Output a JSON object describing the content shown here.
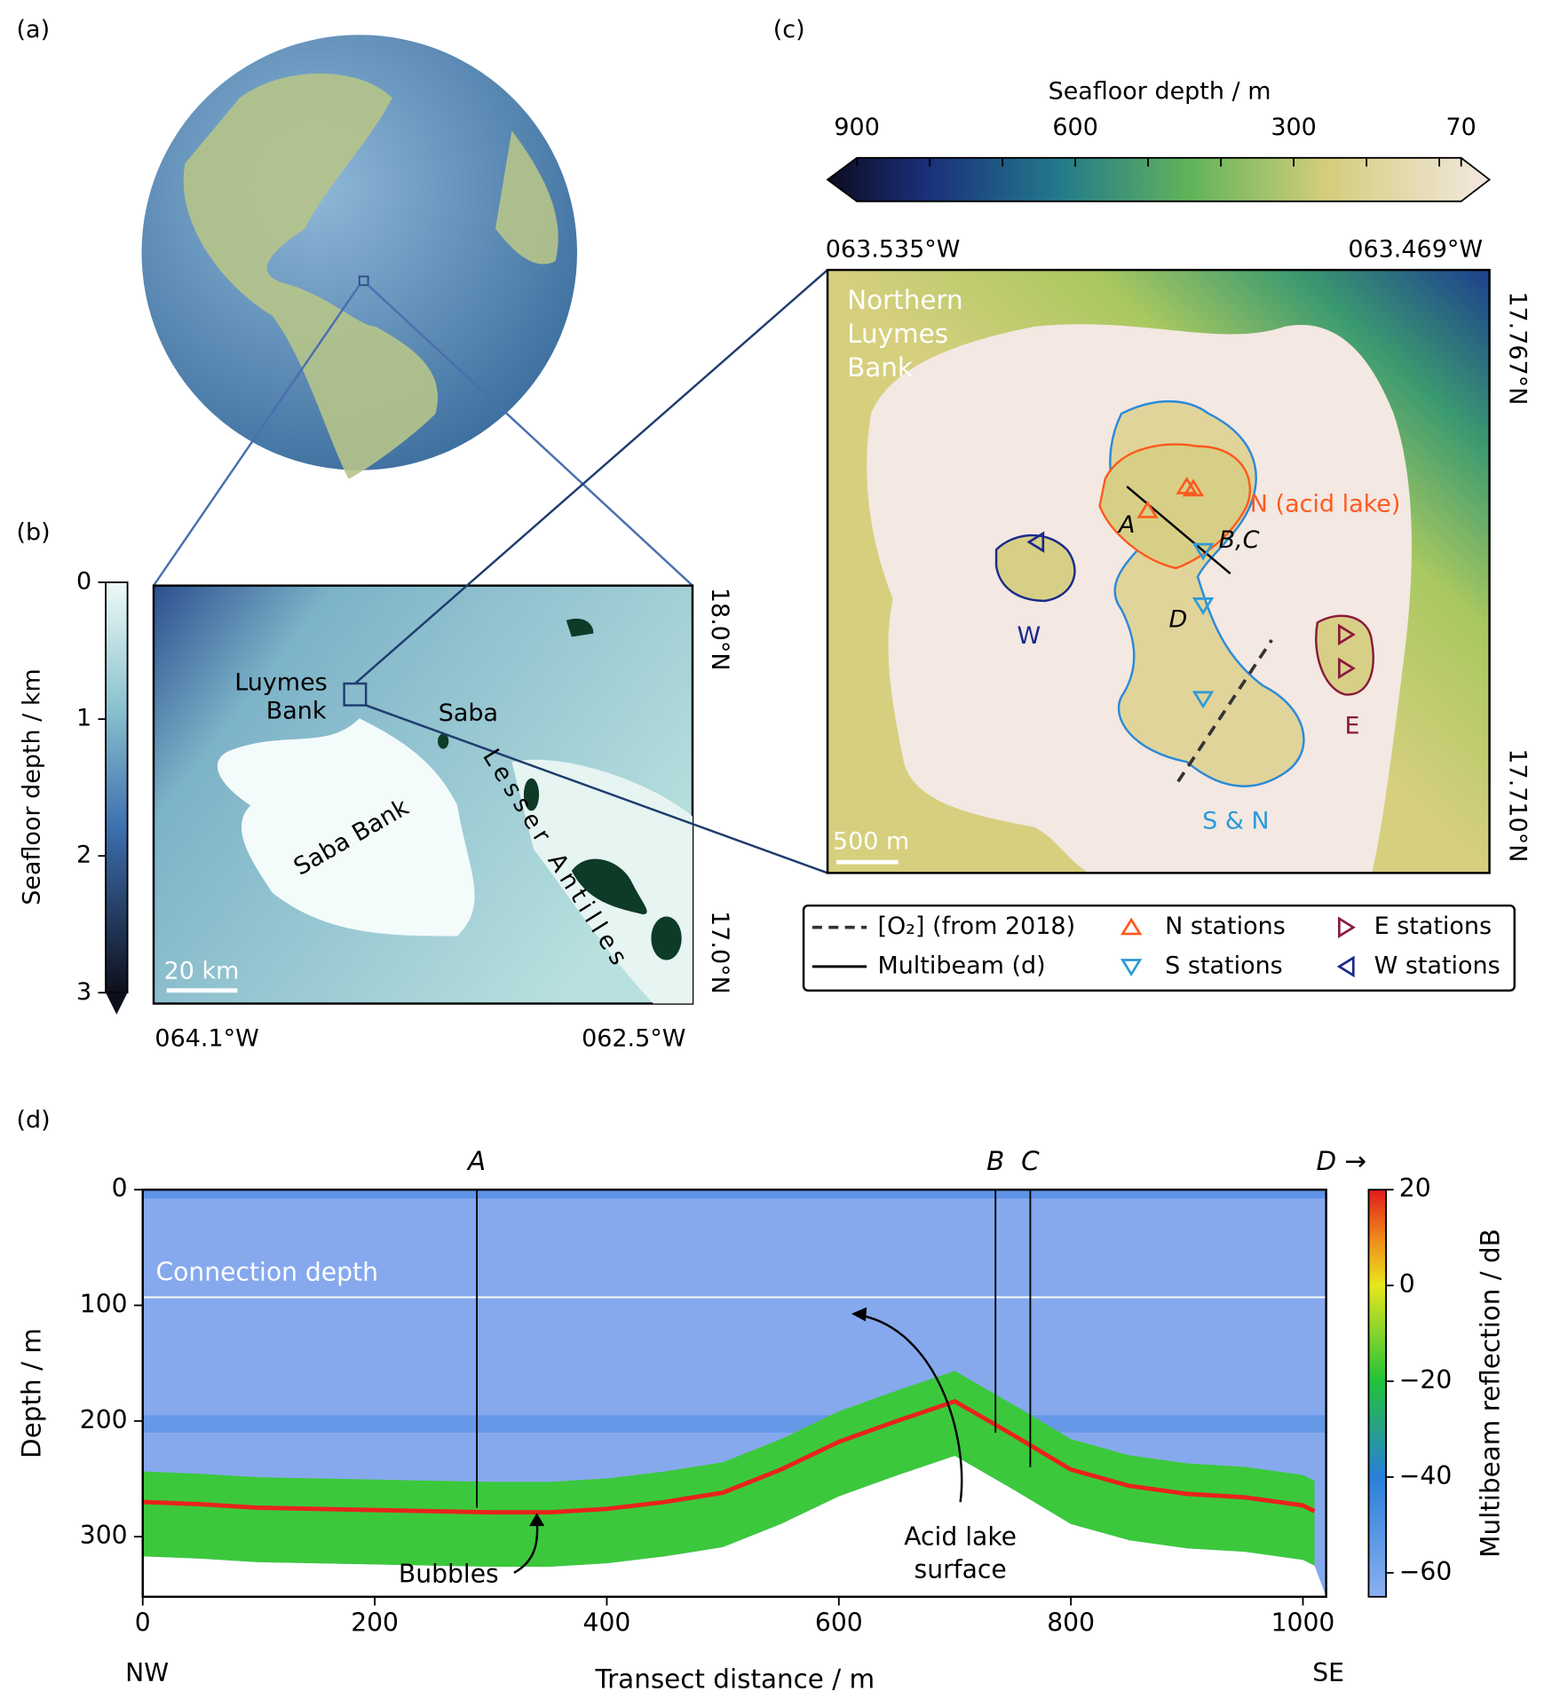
{
  "panel_a": {
    "label": "(a)"
  },
  "panel_b": {
    "label": "(b)",
    "colorbar": {
      "label": "Seafloor depth / km",
      "lim": [
        0,
        3
      ],
      "ticks": [
        0,
        1,
        2,
        3
      ]
    },
    "place_labels": {
      "luymes": [
        "Luymes",
        "Bank"
      ],
      "saba": "Saba",
      "saba_bank": "Saba Bank",
      "antilles": "Lesser Antilles"
    },
    "scale_bar": "20 km",
    "lon_labels": [
      "064.1°W",
      "062.5°W"
    ],
    "lat_labels": [
      "18.0°N",
      "17.0°N"
    ]
  },
  "panel_c": {
    "label": "(c)",
    "colorbar": {
      "label": "Seafloor depth / m",
      "lim": [
        900,
        70
      ],
      "ticks": [
        900,
        600,
        300,
        70
      ],
      "minor_ticks": [
        800,
        700,
        500,
        400,
        200,
        100
      ]
    },
    "lon_labels": [
      "063.535°W",
      "063.469°W"
    ],
    "lat_labels": [
      "17.767°N",
      "17.710°N"
    ],
    "map_labels": {
      "title": [
        "Northern",
        "Luymes",
        "Bank"
      ],
      "north": "N (acid lake)",
      "west": "W",
      "east": "E",
      "south": "S & N",
      "a": "A",
      "bc": "B,C",
      "d": "D"
    },
    "scale_bar": "500 m",
    "legend": [
      "[O₂] (from 2018)",
      "Multibeam (d)",
      "N stations",
      "S stations",
      "E stations",
      "W stations"
    ]
  },
  "chart_data": {
    "type": "echogram",
    "label": "(d)",
    "xlabel": "Transect distance / m",
    "ylabel": "Depth / m",
    "xlim": [
      0,
      1020
    ],
    "ylim": [
      0,
      352
    ],
    "y_inverted": true,
    "xticks": [
      0,
      200,
      400,
      600,
      800,
      1000
    ],
    "yticks": [
      0,
      100,
      200,
      300
    ],
    "end_labels": [
      "NW",
      "SE"
    ],
    "colorbar": {
      "label": "Multibeam reflection / dB",
      "clim": [
        -65,
        20
      ],
      "ticks": [
        20,
        0,
        {
          "value": -20,
          "label": "−20"
        },
        {
          "value": -40,
          "label": "−40"
        },
        {
          "value": -60,
          "label": "−60"
        }
      ]
    },
    "series": [
      {
        "name": "Seafloor",
        "color": "#e8231b",
        "x": [
          0,
          50,
          100,
          150,
          200,
          250,
          300,
          350,
          400,
          450,
          500,
          550,
          600,
          650,
          700,
          750,
          800,
          850,
          900,
          950,
          1000,
          1010
        ],
        "values": [
          270,
          272,
          275,
          276,
          277,
          278,
          279,
          279,
          276,
          270,
          262,
          242,
          218,
          200,
          183,
          212,
          242,
          256,
          263,
          266,
          273,
          278
        ]
      }
    ],
    "connection_depth": {
      "label": "Connection depth",
      "value": 93
    },
    "stations": [
      {
        "label": "A",
        "x": 288,
        "depth": 275
      },
      {
        "label": "B",
        "x": 735,
        "depth": 210
      },
      {
        "label": "C",
        "x": 765,
        "depth": 240
      }
    ],
    "direction_label": "D →",
    "annotations": {
      "bubbles": "Bubbles",
      "lake": [
        "Acid lake",
        "surface"
      ]
    }
  }
}
